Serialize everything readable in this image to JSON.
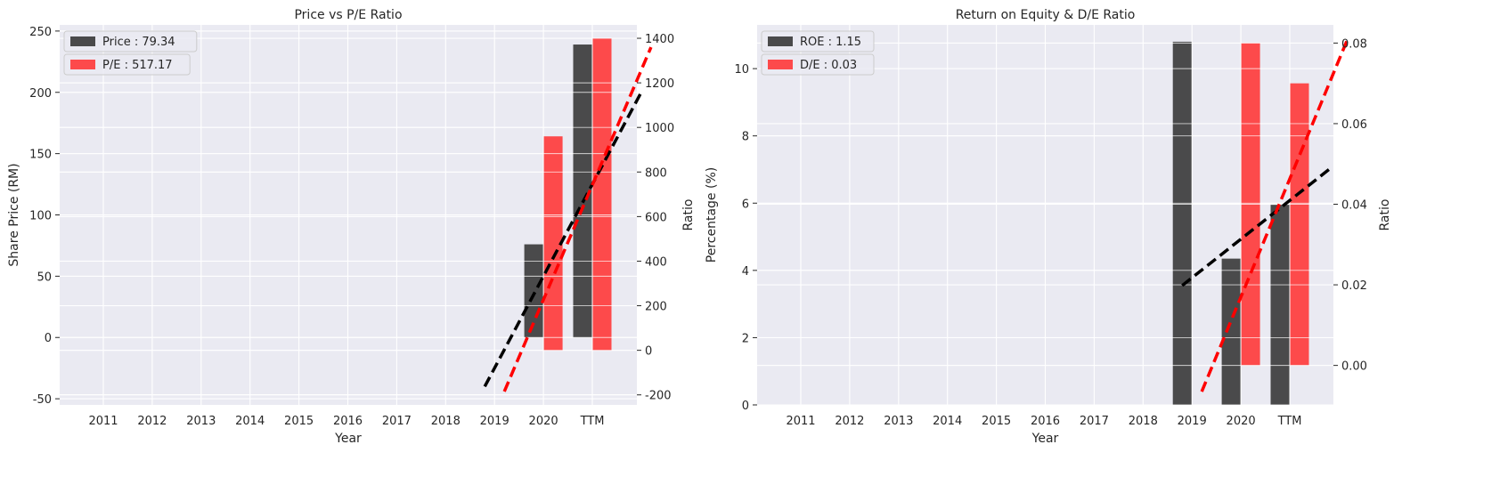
{
  "chart_data": [
    {
      "type": "bar",
      "title": "Price vs P/E Ratio",
      "xlabel": "Year",
      "ylabel": "Share Price (RM)",
      "y2label": "Ratio",
      "categories": [
        "2011",
        "2012",
        "2013",
        "2014",
        "2015",
        "2016",
        "2017",
        "2018",
        "2019",
        "2020",
        "TTM"
      ],
      "ylim": [
        -55,
        255
      ],
      "yticks": [
        -50,
        0,
        50,
        100,
        150,
        200,
        250
      ],
      "y2lim": [
        -245,
        1460
      ],
      "y2ticks": [
        -200,
        0,
        200,
        400,
        600,
        800,
        1000,
        1200,
        1400
      ],
      "grid": true,
      "legend_position": "top-left",
      "legend": [
        "Price : 79.34",
        "P/E : 517.17"
      ],
      "series": [
        {
          "name": "Price : 79.34",
          "axis": "left",
          "color": "#333333",
          "values": [
            null,
            null,
            null,
            null,
            null,
            null,
            null,
            null,
            null,
            76,
            239
          ]
        },
        {
          "name": "P/E : 517.17",
          "axis": "right",
          "color": "#ff3333",
          "values": [
            null,
            null,
            null,
            null,
            null,
            null,
            null,
            null,
            null,
            960,
            1400
          ]
        }
      ],
      "trendlines": [
        {
          "axis": "left",
          "color": "#000000",
          "x_start": 7.8,
          "y_start": -40,
          "x_end": 11.0,
          "y_end": 200
        },
        {
          "axis": "right",
          "color": "#ff0000",
          "x_start": 8.2,
          "y_start": -185,
          "x_end": 11.2,
          "y_end": 1360
        }
      ]
    },
    {
      "type": "bar",
      "title": "Return on Equity & D/E Ratio",
      "xlabel": "Year",
      "ylabel": "Percentage (%)",
      "y2label": "Ratio",
      "categories": [
        "2011",
        "2012",
        "2013",
        "2014",
        "2015",
        "2016",
        "2017",
        "2018",
        "2019",
        "2020",
        "TTM"
      ],
      "ylim": [
        0,
        11.3
      ],
      "yticks": [
        0,
        2,
        4,
        6,
        8,
        10
      ],
      "y2lim": [
        -0.0098,
        0.0845
      ],
      "y2ticks": [
        0.0,
        0.02,
        0.04,
        0.06,
        0.08
      ],
      "y2ticklabels": [
        "0.00",
        "0.02",
        "0.04",
        "0.06",
        "0.08"
      ],
      "grid": true,
      "legend_position": "top-left",
      "legend": [
        "ROE : 1.15",
        "D/E : 0.03"
      ],
      "series": [
        {
          "name": "ROE : 1.15",
          "axis": "left",
          "color": "#333333",
          "values": [
            null,
            null,
            null,
            null,
            null,
            null,
            null,
            null,
            10.8,
            4.35,
            5.95
          ]
        },
        {
          "name": "D/E : 0.03",
          "axis": "right",
          "color": "#ff3333",
          "values": [
            null,
            null,
            null,
            null,
            null,
            null,
            null,
            null,
            null,
            0.08,
            0.07
          ]
        }
      ],
      "trendlines": [
        {
          "axis": "left",
          "color": "#000000",
          "x_start": 7.8,
          "y_start": 3.55,
          "x_end": 10.8,
          "y_end": 7.0
        },
        {
          "axis": "right",
          "color": "#ff0000",
          "x_start": 8.2,
          "y_start": -0.0065,
          "x_end": 11.2,
          "y_end": 0.0815
        }
      ]
    }
  ]
}
